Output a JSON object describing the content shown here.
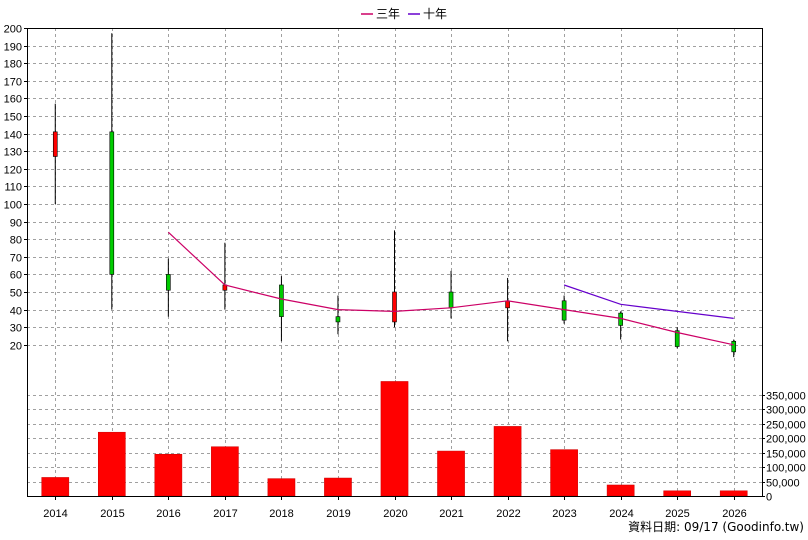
{
  "legend": [
    {
      "name": "三年",
      "color": "#cc0066"
    },
    {
      "name": "十年",
      "color": "#6600cc"
    }
  ],
  "source_label": "資料日期: 09/17  (Goodinfo.tw)",
  "chart_data": {
    "type": "candlestick+bar",
    "years": [
      "2014",
      "2015",
      "2016",
      "2017",
      "2018",
      "2019",
      "2020",
      "2021",
      "2022",
      "2023",
      "2024",
      "2025",
      "2026"
    ],
    "price_axis": {
      "min": 0,
      "max": 200,
      "ticks": [
        20,
        30,
        40,
        50,
        60,
        70,
        80,
        90,
        100,
        110,
        120,
        130,
        140,
        150,
        160,
        170,
        180,
        190,
        200
      ],
      "grid": true
    },
    "volume_axis": {
      "min": 0,
      "max": 400000,
      "ticks": [
        0,
        50000,
        100000,
        150000,
        200000,
        250000,
        300000,
        350000
      ],
      "tick_labels": [
        "0",
        "50,000",
        "100,000",
        "150,000",
        "200,000",
        "250,000",
        "300,000",
        "350,000"
      ]
    },
    "candles": [
      {
        "year": "2014",
        "open": 127,
        "high": 157,
        "low": 100,
        "close": 141
      },
      {
        "year": "2015",
        "open": 141,
        "high": 197,
        "low": 40,
        "close": 60
      },
      {
        "year": "2016",
        "open": 60,
        "high": 69,
        "low": 36,
        "close": 51
      },
      {
        "year": "2017",
        "open": 51,
        "high": 78,
        "low": 40,
        "close": 54
      },
      {
        "year": "2018",
        "open": 54,
        "high": 59,
        "low": 22,
        "close": 36
      },
      {
        "year": "2019",
        "open": 36,
        "high": 48,
        "low": 26,
        "close": 33
      },
      {
        "year": "2020",
        "open": 33,
        "high": 85,
        "low": 30,
        "close": 50
      },
      {
        "year": "2021",
        "open": 50,
        "high": 62,
        "low": 35,
        "close": 41
      },
      {
        "year": "2022",
        "open": 41,
        "high": 58,
        "low": 22,
        "close": 45
      },
      {
        "year": "2023",
        "open": 45,
        "high": 48,
        "low": 32,
        "close": 34
      },
      {
        "year": "2024",
        "open": 38,
        "high": 39,
        "low": 23,
        "close": 31
      },
      {
        "year": "2025",
        "open": 28,
        "high": 30,
        "low": 18,
        "close": 19
      },
      {
        "year": "2026",
        "open": 22,
        "high": 23,
        "low": 13,
        "close": 16
      }
    ],
    "series": [
      {
        "name": "三年",
        "color": "#cc0066",
        "points": [
          [
            "2016",
            84
          ],
          [
            "2017",
            54
          ],
          [
            "2018",
            46
          ],
          [
            "2019",
            40
          ],
          [
            "2020",
            39
          ],
          [
            "2021",
            41
          ],
          [
            "2022",
            45
          ],
          [
            "2023",
            40
          ],
          [
            "2024",
            35
          ],
          [
            "2025",
            27
          ],
          [
            "2026",
            20
          ]
        ]
      },
      {
        "name": "十年",
        "color": "#6600cc",
        "points": [
          [
            "2023",
            54
          ],
          [
            "2024",
            43
          ],
          [
            "2025",
            39
          ],
          [
            "2026",
            35
          ]
        ]
      }
    ],
    "volume": [
      64000,
      220000,
      144000,
      170000,
      60000,
      62000,
      395000,
      155000,
      240000,
      160000,
      38000,
      18000,
      18000
    ],
    "up_color": "#ff0000",
    "down_color": "#00cc00",
    "volume_color": "#ff0000"
  }
}
